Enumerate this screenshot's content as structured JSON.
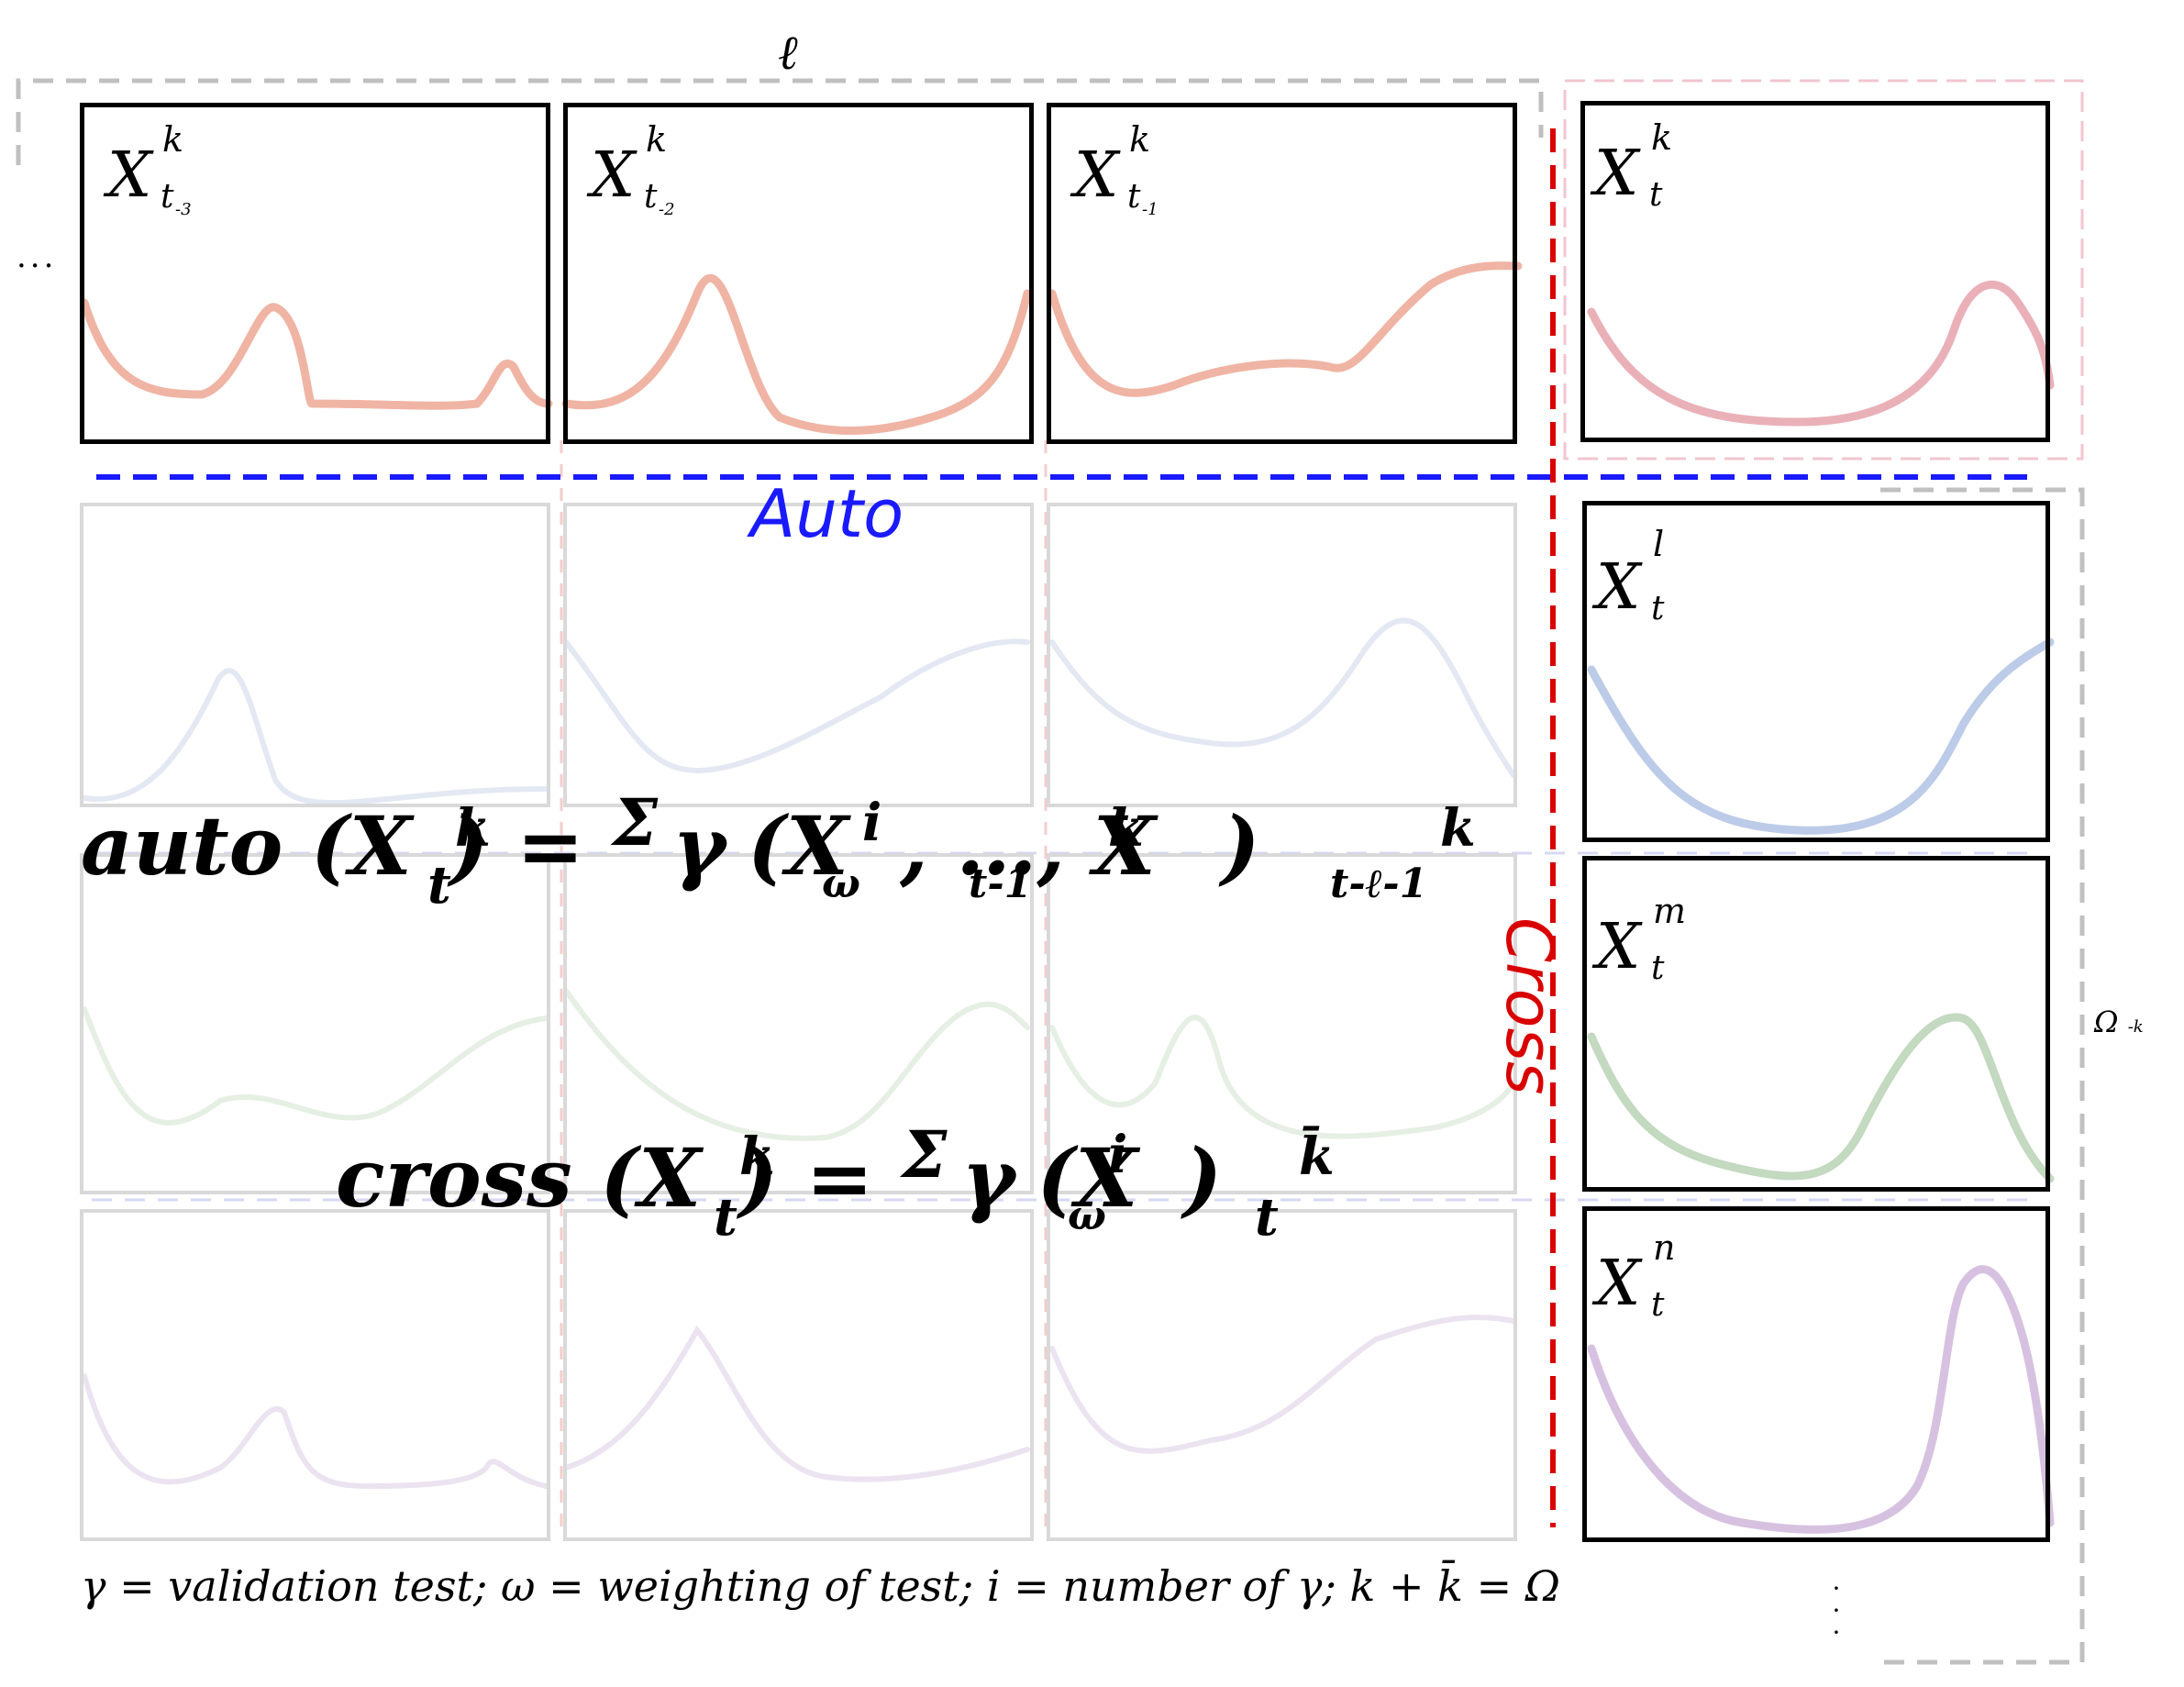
{
  "labels": {
    "ell": "ℓ",
    "auto": "Auto",
    "cross": "Cross",
    "omega": "Ω",
    "omega_sub": "-k",
    "ellipsis": "···"
  },
  "panels_top": [
    {
      "var": "X",
      "sup": "k",
      "sub": "t",
      "sub2": "-3"
    },
    {
      "var": "X",
      "sup": "k",
      "sub": "t",
      "sub2": "-2"
    },
    {
      "var": "X",
      "sup": "k",
      "sub": "t",
      "sub2": "-1"
    }
  ],
  "panel_target": {
    "var": "X",
    "sup": "k",
    "sub": "t"
  },
  "panels_right": [
    {
      "var": "X",
      "sup": "l",
      "sub": "t"
    },
    {
      "var": "X",
      "sup": "m",
      "sub": "t"
    },
    {
      "var": "X",
      "sup": "n",
      "sub": "t"
    }
  ],
  "equation_auto": {
    "head": "auto (X",
    "head_sup": "k",
    "head_sub": "t",
    "mid": ") = ",
    "sigma": "Σ",
    "gamma": "γ",
    "gamma_sub": "ω",
    "gamma_sup": "i",
    "open": "(X",
    "a_sub": "t-1",
    "a_sup": "k",
    "sep": ", …, X",
    "b_sub": "t-ℓ-1",
    "b_sup": "k",
    "close": ")"
  },
  "equation_cross": {
    "head": "cross (X",
    "head_sup": "k",
    "head_sub": "t",
    "mid": ") = ",
    "sigma": "Σ",
    "gamma": "γ",
    "gamma_sub": "ω",
    "gamma_sup": "i",
    "open": "(X",
    "a_sub": "t",
    "a_sup": "k̄",
    "close": ")"
  },
  "legend": "γ = validation test; ω = weighting of test; i = number of γ; k + k̄ = Ω",
  "colors": {
    "auto": "#1a1aff",
    "cross": "#d90000",
    "red_curve": "#f0b4a4",
    "pink_curve": "#eab0b8",
    "blue_curve": "#bccbe8",
    "green_curve": "#c3d9c0",
    "purple_curve": "#d7c1e0",
    "grey_dash": "#c0c0c0",
    "pink_dash": "#f2c6cf"
  }
}
